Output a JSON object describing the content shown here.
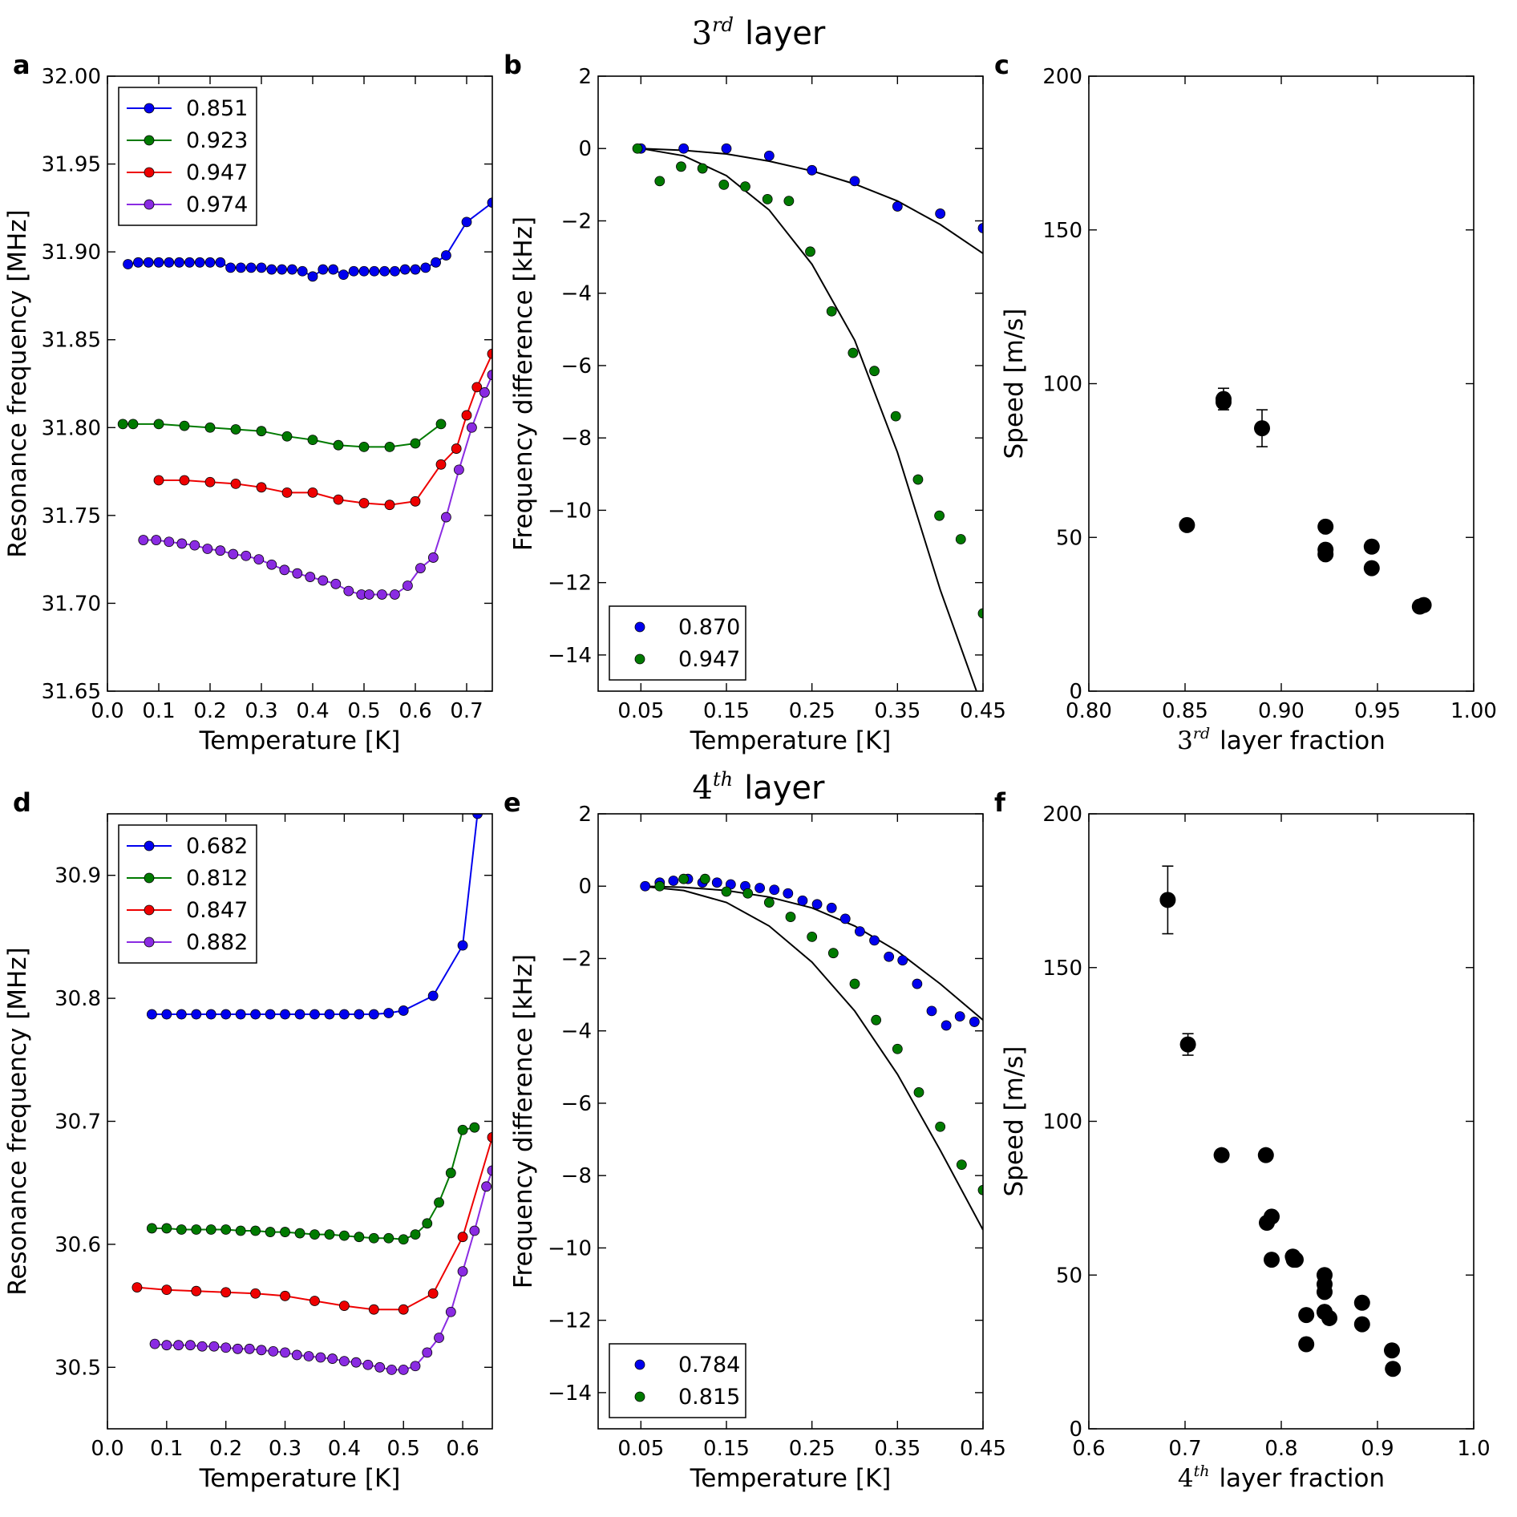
{
  "figure_titles": {
    "row1_ordinal": "3",
    "row1_superscript": "rd",
    "row1_word": "layer",
    "row2_ordinal": "4",
    "row2_superscript": "th",
    "row2_word": "layer"
  },
  "colors": {
    "blue": "#0000ee",
    "green": "#007a00",
    "red": "#ee0000",
    "purple": "#8a2be2",
    "black": "#000000"
  },
  "chart_data": [
    {
      "id": "a",
      "panel_letter": "a",
      "type": "line",
      "xlabel": "Temperature [K]",
      "ylabel": "Resonance frequency [MHz]",
      "xlim": [
        0.0,
        0.75
      ],
      "ylim": [
        31.65,
        32.0
      ],
      "xticks": [
        0.0,
        0.1,
        0.2,
        0.3,
        0.4,
        0.5,
        0.6,
        0.7
      ],
      "xtick_labels": [
        "0.0",
        "0.1",
        "0.2",
        "0.3",
        "0.4",
        "0.5",
        "0.6",
        "0.7"
      ],
      "yticks": [
        31.65,
        31.7,
        31.75,
        31.8,
        31.85,
        31.9,
        31.95,
        32.0
      ],
      "ytick_labels": [
        "31.65",
        "31.70",
        "31.75",
        "31.80",
        "31.85",
        "31.90",
        "31.95",
        "32.00"
      ],
      "legend_position": "upper-left",
      "series": [
        {
          "name": "0.851",
          "color": "blue",
          "x": [
            0.04,
            0.06,
            0.08,
            0.1,
            0.12,
            0.14,
            0.16,
            0.18,
            0.2,
            0.22,
            0.24,
            0.26,
            0.28,
            0.3,
            0.32,
            0.34,
            0.36,
            0.38,
            0.4,
            0.42,
            0.44,
            0.46,
            0.48,
            0.5,
            0.52,
            0.54,
            0.56,
            0.58,
            0.6,
            0.62,
            0.64,
            0.66,
            0.7,
            0.75
          ],
          "y": [
            31.893,
            31.894,
            31.894,
            31.894,
            31.894,
            31.894,
            31.894,
            31.894,
            31.894,
            31.894,
            31.891,
            31.891,
            31.891,
            31.891,
            31.89,
            31.89,
            31.89,
            31.889,
            31.886,
            31.89,
            31.89,
            31.887,
            31.889,
            31.889,
            31.889,
            31.889,
            31.889,
            31.89,
            31.89,
            31.891,
            31.894,
            31.898,
            31.917,
            31.928
          ]
        },
        {
          "name": "0.923",
          "color": "green",
          "x": [
            0.03,
            0.05,
            0.1,
            0.15,
            0.2,
            0.25,
            0.3,
            0.35,
            0.4,
            0.45,
            0.5,
            0.55,
            0.6,
            0.65
          ],
          "y": [
            31.802,
            31.802,
            31.802,
            31.801,
            31.8,
            31.799,
            31.798,
            31.795,
            31.793,
            31.79,
            31.789,
            31.789,
            31.791,
            31.802
          ]
        },
        {
          "name": "0.947",
          "color": "red",
          "x": [
            0.1,
            0.15,
            0.2,
            0.25,
            0.3,
            0.35,
            0.4,
            0.45,
            0.5,
            0.55,
            0.6,
            0.65,
            0.68,
            0.7,
            0.72,
            0.75
          ],
          "y": [
            31.77,
            31.77,
            31.769,
            31.768,
            31.766,
            31.763,
            31.763,
            31.759,
            31.757,
            31.756,
            31.758,
            31.779,
            31.788,
            31.807,
            31.823,
            31.842
          ]
        },
        {
          "name": "0.974",
          "color": "purple",
          "x": [
            0.07,
            0.095,
            0.12,
            0.145,
            0.17,
            0.195,
            0.22,
            0.245,
            0.27,
            0.295,
            0.32,
            0.345,
            0.37,
            0.395,
            0.42,
            0.445,
            0.47,
            0.495,
            0.51,
            0.535,
            0.56,
            0.585,
            0.61,
            0.635,
            0.66,
            0.685,
            0.71,
            0.735,
            0.75
          ],
          "y": [
            31.736,
            31.736,
            31.735,
            31.734,
            31.733,
            31.731,
            31.73,
            31.728,
            31.727,
            31.725,
            31.722,
            31.719,
            31.717,
            31.715,
            31.713,
            31.711,
            31.707,
            31.705,
            31.705,
            31.705,
            31.705,
            31.71,
            31.72,
            31.726,
            31.749,
            31.776,
            31.8,
            31.82,
            31.83
          ]
        }
      ]
    },
    {
      "id": "b",
      "panel_letter": "b",
      "type": "scatter",
      "xlabel": "Temperature [K]",
      "ylabel": "Frequency difference [kHz]",
      "xlim": [
        0.0,
        0.45
      ],
      "ylim": [
        -15,
        2
      ],
      "xticks": [
        0.05,
        0.15,
        0.25,
        0.35,
        0.45
      ],
      "xtick_labels": [
        "0.05",
        "0.15",
        "0.25",
        "0.35",
        "0.45"
      ],
      "yticks": [
        -14,
        -12,
        -10,
        -8,
        -6,
        -4,
        -2,
        0,
        2
      ],
      "ytick_labels": [
        "−14",
        "−12",
        "−10",
        "−8",
        "−6",
        "−4",
        "−2",
        "0",
        "2"
      ],
      "legend_position": "lower-left",
      "series": [
        {
          "name": "0.870",
          "color": "blue",
          "x": [
            0.05,
            0.1,
            0.15,
            0.2,
            0.25,
            0.3,
            0.35,
            0.4,
            0.45
          ],
          "y": [
            0.0,
            0.0,
            0.0,
            -0.2,
            -0.6,
            -0.9,
            -1.6,
            -1.8,
            -2.2
          ]
        },
        {
          "name": "0.947",
          "color": "green",
          "x": [
            0.046,
            0.072,
            0.097,
            0.122,
            0.147,
            0.172,
            0.198,
            0.223,
            0.248,
            0.273,
            0.298,
            0.323,
            0.348,
            0.374,
            0.399,
            0.424,
            0.45
          ],
          "y": [
            0.0,
            -0.9,
            -0.5,
            -0.55,
            -1.0,
            -1.05,
            -1.4,
            -1.45,
            -2.85,
            -4.5,
            -5.65,
            -6.15,
            -7.4,
            -9.15,
            -10.15,
            -10.8,
            -12.85
          ]
        }
      ],
      "fits": [
        {
          "x": [
            0.05,
            0.1,
            0.15,
            0.2,
            0.25,
            0.3,
            0.35,
            0.4,
            0.45
          ],
          "y": [
            0.0,
            -0.05,
            -0.15,
            -0.35,
            -0.62,
            -0.98,
            -1.45,
            -2.1,
            -2.9
          ]
        },
        {
          "x": [
            0.05,
            0.1,
            0.15,
            0.2,
            0.25,
            0.3,
            0.35,
            0.4,
            0.45
          ],
          "y": [
            0.0,
            -0.2,
            -0.75,
            -1.7,
            -3.2,
            -5.3,
            -8.4,
            -12.2,
            -15.5
          ]
        }
      ]
    },
    {
      "id": "c",
      "panel_letter": "c",
      "type": "scatter",
      "xlabel_prefix": "3",
      "xlabel_superscript": "rd",
      "xlabel_suffix": "layer fraction",
      "ylabel": "Speed [m/s]",
      "xlim": [
        0.8,
        1.0
      ],
      "ylim": [
        0,
        200
      ],
      "xticks": [
        0.8,
        0.85,
        0.9,
        0.95,
        1.0
      ],
      "xtick_labels": [
        "0.80",
        "0.85",
        "0.90",
        "0.95",
        "1.00"
      ],
      "yticks": [
        0,
        50,
        100,
        150,
        200
      ],
      "ytick_labels": [
        "0",
        "50",
        "100",
        "150",
        "200"
      ],
      "series": [
        {
          "name": "speed",
          "color": "black",
          "x": [
            0.851,
            0.87,
            0.87,
            0.89,
            0.923,
            0.923,
            0.923,
            0.947,
            0.947,
            0.972,
            0.974
          ],
          "y": [
            54,
            95,
            94,
            85.5,
            53.5,
            46,
            44.5,
            47,
            40,
            27.5,
            28
          ],
          "err": [
            0,
            3.5,
            0,
            6,
            0,
            0,
            0,
            0,
            0,
            0,
            0
          ]
        }
      ]
    },
    {
      "id": "d",
      "panel_letter": "d",
      "type": "line",
      "xlabel": "Temperature [K]",
      "ylabel": "Resonance frequency [MHz]",
      "xlim": [
        0.0,
        0.65
      ],
      "ylim": [
        30.45,
        30.95
      ],
      "xticks": [
        0.0,
        0.1,
        0.2,
        0.3,
        0.4,
        0.5,
        0.6
      ],
      "xtick_labels": [
        "0.0",
        "0.1",
        "0.2",
        "0.3",
        "0.4",
        "0.5",
        "0.6"
      ],
      "yticks": [
        30.5,
        30.6,
        30.7,
        30.8,
        30.9
      ],
      "ytick_labels": [
        "30.5",
        "30.6",
        "30.7",
        "30.8",
        "30.9"
      ],
      "legend_position": "upper-left",
      "series": [
        {
          "name": "0.682",
          "color": "blue",
          "x": [
            0.075,
            0.1,
            0.125,
            0.15,
            0.175,
            0.2,
            0.225,
            0.25,
            0.275,
            0.3,
            0.325,
            0.35,
            0.375,
            0.4,
            0.425,
            0.45,
            0.475,
            0.5,
            0.55,
            0.6,
            0.625
          ],
          "y": [
            30.787,
            30.787,
            30.787,
            30.787,
            30.787,
            30.787,
            30.787,
            30.787,
            30.787,
            30.787,
            30.787,
            30.787,
            30.787,
            30.787,
            30.787,
            30.787,
            30.788,
            30.79,
            30.802,
            30.843,
            30.95
          ]
        },
        {
          "name": "0.812",
          "color": "green",
          "x": [
            0.075,
            0.1,
            0.125,
            0.15,
            0.175,
            0.2,
            0.225,
            0.25,
            0.275,
            0.3,
            0.325,
            0.35,
            0.375,
            0.4,
            0.425,
            0.45,
            0.475,
            0.5,
            0.52,
            0.54,
            0.56,
            0.58,
            0.6,
            0.62
          ],
          "y": [
            30.613,
            30.613,
            30.612,
            30.612,
            30.612,
            30.612,
            30.611,
            30.611,
            30.61,
            30.61,
            30.609,
            30.608,
            30.608,
            30.607,
            30.606,
            30.605,
            30.605,
            30.604,
            30.608,
            30.617,
            30.634,
            30.658,
            30.693,
            30.695
          ]
        },
        {
          "name": "0.847",
          "color": "red",
          "x": [
            0.05,
            0.1,
            0.15,
            0.2,
            0.25,
            0.3,
            0.35,
            0.4,
            0.45,
            0.5,
            0.55,
            0.6,
            0.65
          ],
          "y": [
            30.565,
            30.563,
            30.562,
            30.561,
            30.56,
            30.558,
            30.554,
            30.55,
            30.547,
            30.547,
            30.56,
            30.606,
            30.687
          ]
        },
        {
          "name": "0.882",
          "color": "purple",
          "x": [
            0.08,
            0.1,
            0.12,
            0.14,
            0.16,
            0.18,
            0.2,
            0.22,
            0.24,
            0.26,
            0.28,
            0.3,
            0.32,
            0.34,
            0.36,
            0.38,
            0.4,
            0.42,
            0.44,
            0.46,
            0.48,
            0.5,
            0.52,
            0.54,
            0.56,
            0.58,
            0.6,
            0.62,
            0.64,
            0.65
          ],
          "y": [
            30.519,
            30.518,
            30.518,
            30.518,
            30.517,
            30.517,
            30.516,
            30.515,
            30.515,
            30.514,
            30.513,
            30.512,
            30.51,
            30.509,
            30.508,
            30.507,
            30.505,
            30.504,
            30.502,
            30.5,
            30.498,
            30.498,
            30.501,
            30.512,
            30.524,
            30.545,
            30.578,
            30.611,
            30.647,
            30.66
          ]
        }
      ]
    },
    {
      "id": "e",
      "panel_letter": "e",
      "type": "scatter",
      "xlabel": "Temperature [K]",
      "ylabel": "Frequency difference [kHz]",
      "xlim": [
        0.0,
        0.45
      ],
      "ylim": [
        -15,
        2
      ],
      "xticks": [
        0.05,
        0.15,
        0.25,
        0.35,
        0.45
      ],
      "xtick_labels": [
        "0.05",
        "0.15",
        "0.25",
        "0.35",
        "0.45"
      ],
      "yticks": [
        -14,
        -12,
        -10,
        -8,
        -6,
        -4,
        -2,
        0,
        2
      ],
      "ytick_labels": [
        "−14",
        "−12",
        "−10",
        "−8",
        "−6",
        "−4",
        "−2",
        "0",
        "2"
      ],
      "legend_position": "lower-left",
      "series": [
        {
          "name": "0.784",
          "color": "blue",
          "x": [
            0.055,
            0.072,
            0.088,
            0.105,
            0.122,
            0.139,
            0.155,
            0.172,
            0.189,
            0.206,
            0.222,
            0.239,
            0.256,
            0.273,
            0.289,
            0.306,
            0.323,
            0.34,
            0.356,
            0.373,
            0.39,
            0.407,
            0.423,
            0.44
          ],
          "y": [
            0.0,
            0.1,
            0.15,
            0.2,
            0.1,
            0.1,
            0.05,
            0.0,
            -0.05,
            -0.1,
            -0.2,
            -0.4,
            -0.5,
            -0.6,
            -0.9,
            -1.25,
            -1.5,
            -1.95,
            -2.05,
            -2.7,
            -3.45,
            -3.85,
            -3.6,
            -3.75
          ]
        },
        {
          "name": "0.815",
          "color": "green",
          "x": [
            0.072,
            0.1,
            0.125,
            0.15,
            0.175,
            0.2,
            0.225,
            0.25,
            0.275,
            0.3,
            0.325,
            0.35,
            0.375,
            0.4,
            0.425,
            0.45
          ],
          "y": [
            0.0,
            0.2,
            0.2,
            -0.15,
            -0.2,
            -0.45,
            -0.85,
            -1.4,
            -1.85,
            -2.7,
            -3.7,
            -4.5,
            -5.7,
            -6.65,
            -7.7,
            -8.4
          ]
        }
      ],
      "fits": [
        {
          "x": [
            0.05,
            0.1,
            0.15,
            0.2,
            0.25,
            0.3,
            0.35,
            0.4,
            0.45
          ],
          "y": [
            0.0,
            -0.03,
            -0.12,
            -0.3,
            -0.6,
            -1.1,
            -1.8,
            -2.7,
            -3.7
          ]
        },
        {
          "x": [
            0.05,
            0.1,
            0.15,
            0.2,
            0.25,
            0.3,
            0.35,
            0.4,
            0.45
          ],
          "y": [
            0.0,
            -0.12,
            -0.45,
            -1.1,
            -2.1,
            -3.45,
            -5.2,
            -7.3,
            -9.5
          ]
        }
      ]
    },
    {
      "id": "f",
      "panel_letter": "f",
      "type": "scatter",
      "xlabel_prefix": "4",
      "xlabel_superscript": "th",
      "xlabel_suffix": "layer fraction",
      "ylabel": "Speed [m/s]",
      "xlim": [
        0.6,
        1.0
      ],
      "ylim": [
        0,
        200
      ],
      "xticks": [
        0.6,
        0.7,
        0.8,
        0.9,
        1.0
      ],
      "xtick_labels": [
        "0.6",
        "0.7",
        "0.8",
        "0.9",
        "1.0"
      ],
      "yticks": [
        0,
        50,
        100,
        150,
        200
      ],
      "ytick_labels": [
        "0",
        "50",
        "100",
        "150",
        "200"
      ],
      "series": [
        {
          "name": "speed",
          "color": "black",
          "x": [
            0.682,
            0.703,
            0.738,
            0.784,
            0.785,
            0.79,
            0.79,
            0.812,
            0.813,
            0.815,
            0.826,
            0.826,
            0.845,
            0.845,
            0.845,
            0.845,
            0.845,
            0.85,
            0.884,
            0.884,
            0.915,
            0.916
          ],
          "y": [
            172,
            125,
            89,
            89,
            67,
            69,
            55,
            56,
            55,
            55,
            37,
            27.5,
            50,
            47,
            44.5,
            38,
            38,
            36,
            41,
            34,
            25.5,
            19.5
          ],
          "err": [
            11,
            3.5,
            0,
            0,
            0,
            0,
            0,
            0,
            0,
            0,
            0,
            0,
            0,
            0,
            0,
            0,
            0,
            0,
            0,
            0,
            0,
            0
          ]
        }
      ]
    }
  ]
}
